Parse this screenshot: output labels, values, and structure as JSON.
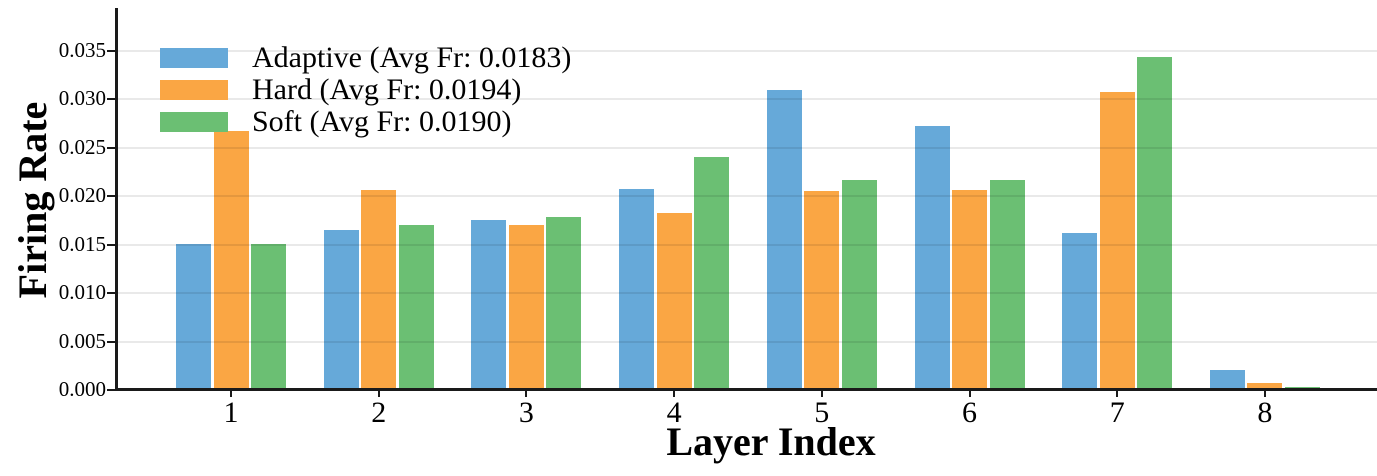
{
  "figure": {
    "background_color": "#ffffff",
    "spine_color": "#1a1a1a",
    "grid_color": "#e8e8e8",
    "text_color": "#000000"
  },
  "chart_data": {
    "type": "bar",
    "title": "",
    "xlabel": "Layer Index",
    "ylabel": "Firing Rate",
    "categories": [
      "1",
      "2",
      "3",
      "4",
      "5",
      "6",
      "7",
      "8"
    ],
    "series": [
      {
        "name": "Adaptive (Avg Fr: 0.0183)",
        "color": "#66A9D9",
        "values": [
          0.0151,
          0.0165,
          0.0175,
          0.0207,
          0.0309,
          0.0272,
          0.0162,
          0.0021
        ]
      },
      {
        "name": "Hard (Avg Fr: 0.0194)",
        "color": "#FAA644",
        "values": [
          0.0267,
          0.0206,
          0.017,
          0.0182,
          0.0205,
          0.0206,
          0.0307,
          0.0007
        ]
      },
      {
        "name": "Soft (Avg Fr: 0.0190)",
        "color": "#6BBF73",
        "values": [
          0.0151,
          0.017,
          0.0178,
          0.024,
          0.0216,
          0.0217,
          0.0343,
          0.0003
        ]
      }
    ],
    "avg_firing_rates": {
      "Adaptive": 0.0183,
      "Hard": 0.0194,
      "Soft": 0.019
    },
    "ylim": [
      0,
      0.0394
    ],
    "yticks": [
      0.0,
      0.005,
      0.01,
      0.015,
      0.02,
      0.025,
      0.03,
      0.035
    ],
    "ytick_labels": [
      "0.000",
      "0.005",
      "0.010",
      "0.015",
      "0.020",
      "0.025",
      "0.030",
      "0.035"
    ],
    "grid": "horizontal",
    "legend_position": "upper-left"
  }
}
